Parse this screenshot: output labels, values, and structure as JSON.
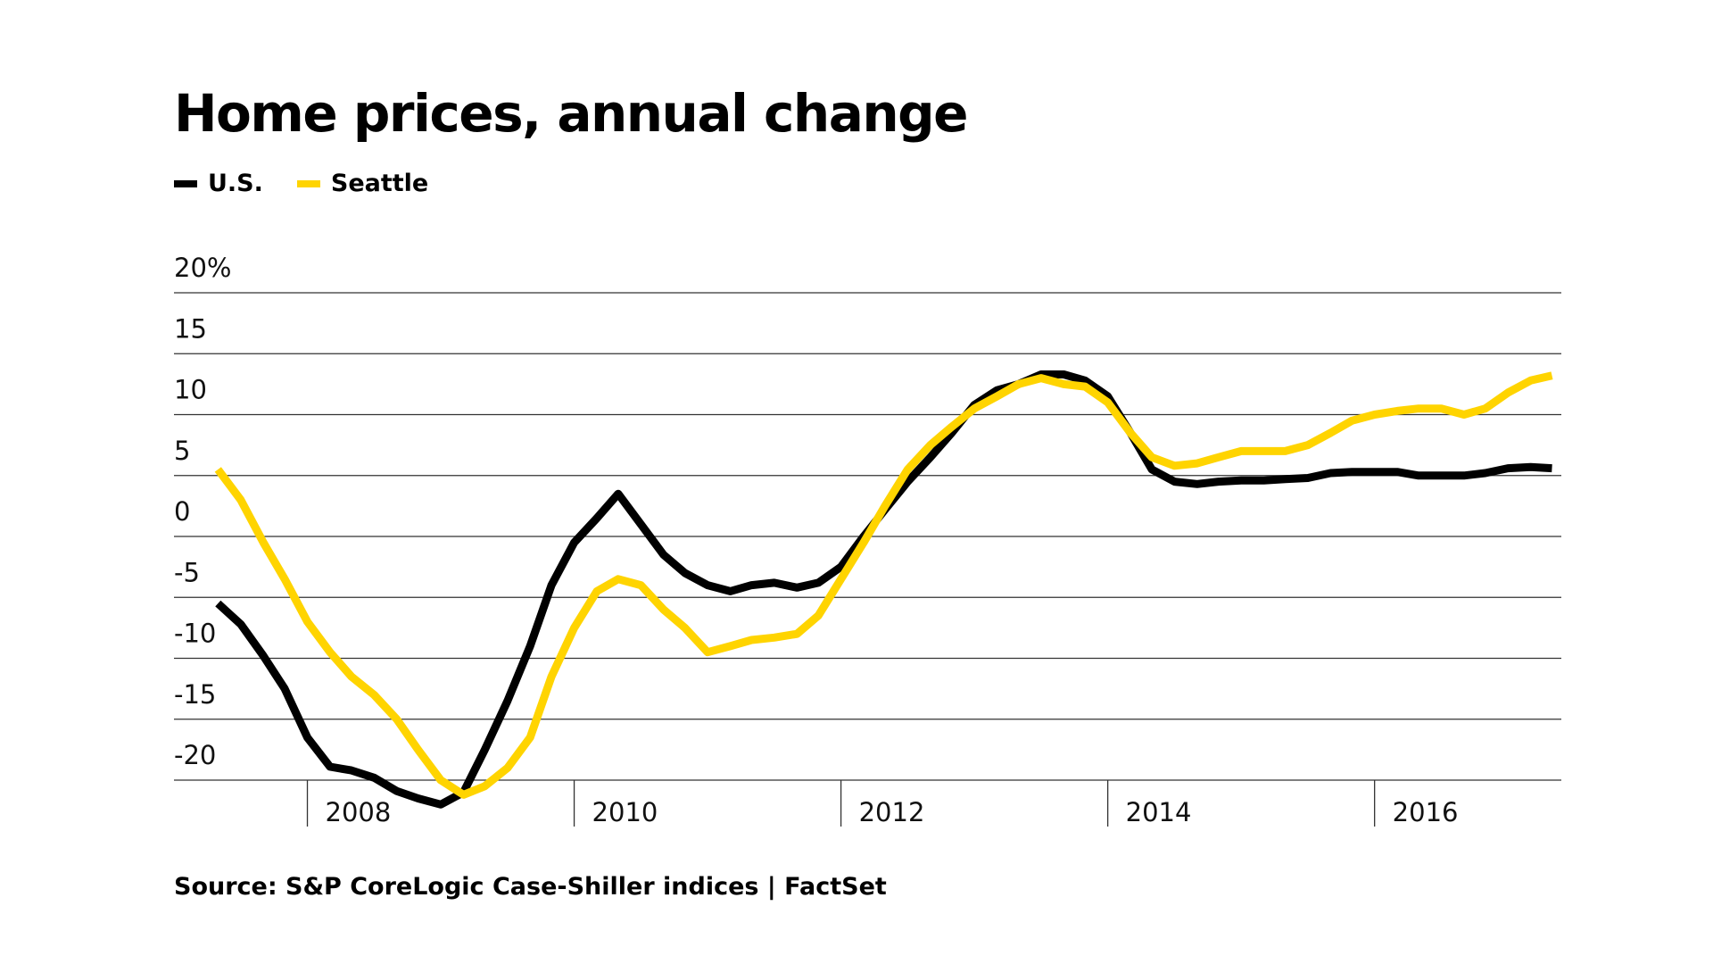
{
  "chart_data": {
    "type": "line",
    "title": "Home prices, annual change",
    "source": "Source: S&P CoreLogic Case-Shiller indices | FactSet",
    "ylim": [
      -20,
      20
    ],
    "yticks": [
      {
        "value": 20,
        "label": "20%"
      },
      {
        "value": 15,
        "label": "15"
      },
      {
        "value": 10,
        "label": "10"
      },
      {
        "value": 5,
        "label": "5"
      },
      {
        "value": 0,
        "label": "0"
      },
      {
        "value": -5,
        "label": "-5"
      },
      {
        "value": -10,
        "label": "-10"
      },
      {
        "value": -15,
        "label": "-15"
      },
      {
        "value": -20,
        "label": "-20"
      }
    ],
    "xlim": [
      2007.0,
      2017.4
    ],
    "xticks": [
      {
        "value": 2008,
        "label": "2008"
      },
      {
        "value": 2010,
        "label": "2010"
      },
      {
        "value": 2012,
        "label": "2012"
      },
      {
        "value": 2014,
        "label": "2014"
      },
      {
        "value": 2016,
        "label": "2016"
      }
    ],
    "legend_position": "top-left",
    "grid": true,
    "series": [
      {
        "name": "U.S.",
        "color": "#000000",
        "points": [
          [
            2007.33,
            -5.5
          ],
          [
            2007.5,
            -7.2
          ],
          [
            2007.67,
            -9.8
          ],
          [
            2007.83,
            -12.5
          ],
          [
            2008.0,
            -16.5
          ],
          [
            2008.17,
            -18.9
          ],
          [
            2008.33,
            -19.2
          ],
          [
            2008.5,
            -19.8
          ],
          [
            2008.67,
            -20.9
          ],
          [
            2008.83,
            -21.5
          ],
          [
            2009.0,
            -22.0
          ],
          [
            2009.17,
            -21.0
          ],
          [
            2009.33,
            -17.5
          ],
          [
            2009.5,
            -13.5
          ],
          [
            2009.67,
            -9.0
          ],
          [
            2009.83,
            -4.0
          ],
          [
            2010.0,
            -0.5
          ],
          [
            2010.17,
            1.5
          ],
          [
            2010.33,
            3.5
          ],
          [
            2010.5,
            1.0
          ],
          [
            2010.67,
            -1.5
          ],
          [
            2010.83,
            -3.0
          ],
          [
            2011.0,
            -4.0
          ],
          [
            2011.17,
            -4.5
          ],
          [
            2011.33,
            -4.0
          ],
          [
            2011.5,
            -3.8
          ],
          [
            2011.67,
            -4.2
          ],
          [
            2011.83,
            -3.8
          ],
          [
            2012.0,
            -2.5
          ],
          [
            2012.17,
            0.0
          ],
          [
            2012.33,
            2.2
          ],
          [
            2012.5,
            4.5
          ],
          [
            2012.67,
            6.5
          ],
          [
            2012.83,
            8.5
          ],
          [
            2013.0,
            10.8
          ],
          [
            2013.17,
            12.0
          ],
          [
            2013.33,
            12.5
          ],
          [
            2013.5,
            13.3
          ],
          [
            2013.67,
            13.3
          ],
          [
            2013.83,
            12.8
          ],
          [
            2014.0,
            11.5
          ],
          [
            2014.17,
            8.5
          ],
          [
            2014.33,
            5.5
          ],
          [
            2014.5,
            4.5
          ],
          [
            2014.67,
            4.3
          ],
          [
            2014.83,
            4.5
          ],
          [
            2015.0,
            4.6
          ],
          [
            2015.17,
            4.6
          ],
          [
            2015.33,
            4.7
          ],
          [
            2015.5,
            4.8
          ],
          [
            2015.67,
            5.2
          ],
          [
            2015.83,
            5.3
          ],
          [
            2016.0,
            5.3
          ],
          [
            2016.17,
            5.3
          ],
          [
            2016.33,
            5.0
          ],
          [
            2016.5,
            5.0
          ],
          [
            2016.67,
            5.0
          ],
          [
            2016.83,
            5.2
          ],
          [
            2017.0,
            5.6
          ],
          [
            2017.17,
            5.7
          ],
          [
            2017.33,
            5.6
          ]
        ]
      },
      {
        "name": "Seattle",
        "color": "#FFD400",
        "points": [
          [
            2007.33,
            5.5
          ],
          [
            2007.5,
            3.0
          ],
          [
            2007.67,
            -0.5
          ],
          [
            2007.83,
            -3.5
          ],
          [
            2008.0,
            -7.0
          ],
          [
            2008.17,
            -9.5
          ],
          [
            2008.33,
            -11.5
          ],
          [
            2008.5,
            -13.0
          ],
          [
            2008.67,
            -15.0
          ],
          [
            2008.83,
            -17.5
          ],
          [
            2009.0,
            -20.0
          ],
          [
            2009.17,
            -21.2
          ],
          [
            2009.33,
            -20.5
          ],
          [
            2009.5,
            -19.0
          ],
          [
            2009.67,
            -16.5
          ],
          [
            2009.83,
            -11.5
          ],
          [
            2010.0,
            -7.5
          ],
          [
            2010.17,
            -4.5
          ],
          [
            2010.33,
            -3.5
          ],
          [
            2010.5,
            -4.0
          ],
          [
            2010.67,
            -6.0
          ],
          [
            2010.83,
            -7.5
          ],
          [
            2011.0,
            -9.5
          ],
          [
            2011.17,
            -9.0
          ],
          [
            2011.33,
            -8.5
          ],
          [
            2011.5,
            -8.3
          ],
          [
            2011.67,
            -8.0
          ],
          [
            2011.83,
            -6.5
          ],
          [
            2012.0,
            -3.5
          ],
          [
            2012.17,
            -0.5
          ],
          [
            2012.33,
            2.5
          ],
          [
            2012.5,
            5.5
          ],
          [
            2012.67,
            7.5
          ],
          [
            2012.83,
            9.0
          ],
          [
            2013.0,
            10.5
          ],
          [
            2013.17,
            11.5
          ],
          [
            2013.33,
            12.5
          ],
          [
            2013.5,
            13.0
          ],
          [
            2013.67,
            12.5
          ],
          [
            2013.83,
            12.3
          ],
          [
            2014.0,
            11.0
          ],
          [
            2014.17,
            8.5
          ],
          [
            2014.33,
            6.5
          ],
          [
            2014.5,
            5.8
          ],
          [
            2014.67,
            6.0
          ],
          [
            2014.83,
            6.5
          ],
          [
            2015.0,
            7.0
          ],
          [
            2015.17,
            7.0
          ],
          [
            2015.33,
            7.0
          ],
          [
            2015.5,
            7.5
          ],
          [
            2015.67,
            8.5
          ],
          [
            2015.83,
            9.5
          ],
          [
            2016.0,
            10.0
          ],
          [
            2016.17,
            10.3
          ],
          [
            2016.33,
            10.5
          ],
          [
            2016.5,
            10.5
          ],
          [
            2016.67,
            10.0
          ],
          [
            2016.83,
            10.5
          ],
          [
            2017.0,
            11.8
          ],
          [
            2017.17,
            12.8
          ],
          [
            2017.33,
            13.2
          ]
        ]
      }
    ]
  }
}
